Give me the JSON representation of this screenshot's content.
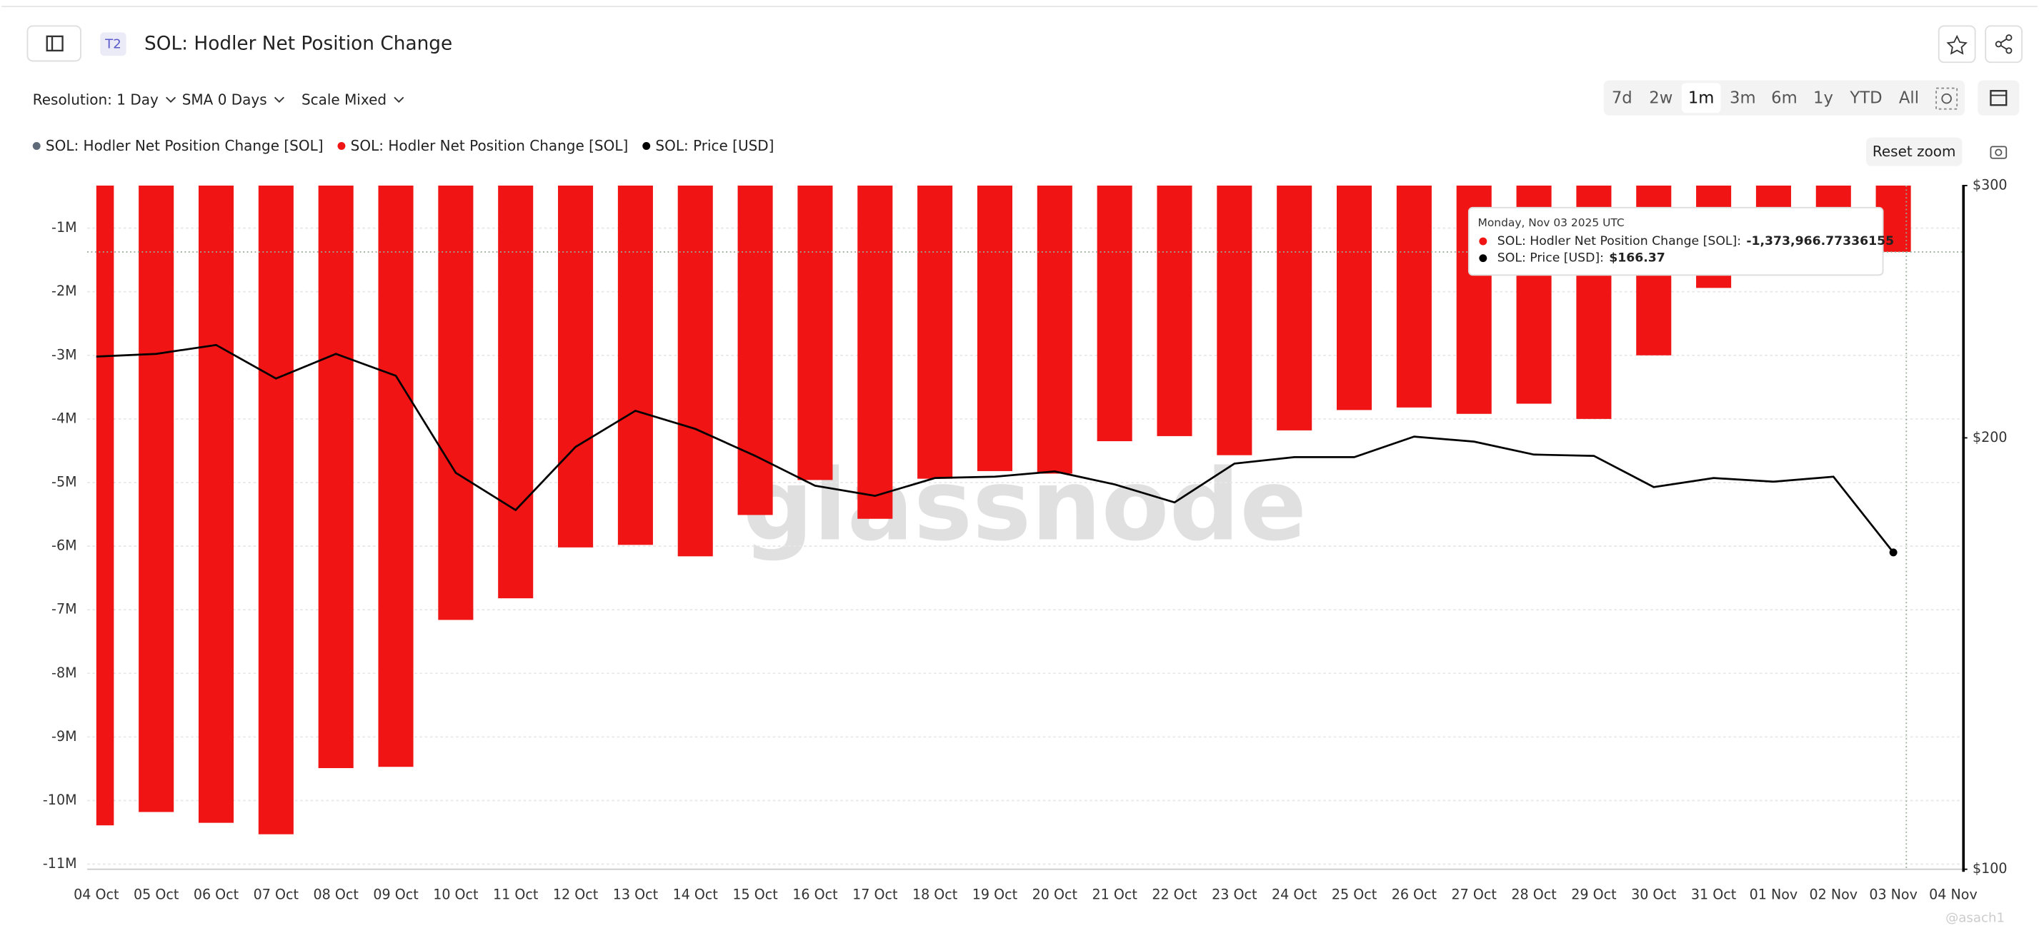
{
  "ui": {
    "badge": "T2",
    "title": "SOL: Hodler Net Position Change",
    "controls": [
      "Resolution: 1 Day",
      "SMA 0 Days",
      "Scale Mixed"
    ],
    "ranges": [
      "7d",
      "2w",
      "1m",
      "3m",
      "6m",
      "1y",
      "YTD",
      "All"
    ],
    "active_range": 2,
    "reset_zoom": "Reset zoom",
    "watermark": "glassnode",
    "credit": "@asach1"
  },
  "chart_data": {
    "type": "combo",
    "categories": [
      "04 Oct",
      "05 Oct",
      "06 Oct",
      "07 Oct",
      "08 Oct",
      "09 Oct",
      "10 Oct",
      "11 Oct",
      "12 Oct",
      "13 Oct",
      "14 Oct",
      "15 Oct",
      "16 Oct",
      "17 Oct",
      "18 Oct",
      "19 Oct",
      "20 Oct",
      "21 Oct",
      "22 Oct",
      "23 Oct",
      "24 Oct",
      "25 Oct",
      "26 Oct",
      "27 Oct",
      "28 Oct",
      "29 Oct",
      "30 Oct",
      "31 Oct",
      "01 Nov",
      "02 Nov",
      "03 Nov",
      "04 Nov"
    ],
    "series": [
      {
        "name": "SOL: Hodler Net Position Change [SOL]",
        "type": "bar",
        "color": "#5f6b78",
        "values": [
          null,
          null,
          null,
          null,
          null,
          null,
          null,
          null,
          null,
          null,
          null,
          null,
          null,
          null,
          null,
          null,
          null,
          null,
          null,
          null,
          null,
          null,
          null,
          null,
          null,
          null,
          null,
          null,
          null,
          null,
          null,
          null
        ]
      },
      {
        "name": "SOL: Hodler Net Position Change [SOL]",
        "type": "bar",
        "color": "#f01414",
        "values": [
          -10390000,
          -10180000,
          -10350000,
          -10530000,
          -9490000,
          -9470000,
          -7160000,
          -6820000,
          -6020000,
          -5980000,
          -6160000,
          -5510000,
          -4960000,
          -5570000,
          -4940000,
          -4820000,
          -4860000,
          -4350000,
          -4270000,
          -4570000,
          -4180000,
          -3860000,
          -3820000,
          -3920000,
          -3760000,
          -4000000,
          -3000000,
          -1940000,
          -670000,
          -670000,
          -1373966.77336155,
          null
        ],
        "value_labels": [
          null,
          null,
          null,
          null,
          null,
          null,
          null,
          null,
          null,
          null,
          null,
          null,
          null,
          null,
          null,
          null,
          null,
          null,
          null,
          null,
          null,
          null,
          null,
          null,
          null,
          null,
          null,
          null,
          null,
          null,
          "-1,373,966.77336155",
          null
        ]
      },
      {
        "name": "SOL: Price [USD]",
        "type": "line",
        "axis": "y2",
        "color": "#000000",
        "values": [
          227.9,
          228.9,
          232.2,
          220.0,
          228.9,
          221.0,
          189.1,
          178.1,
          197.1,
          208.9,
          202.9,
          194.3,
          185.2,
          182.2,
          187.5,
          187.9,
          189.5,
          185.6,
          180.3,
          191.9,
          193.9,
          193.9,
          200.4,
          198.8,
          194.7,
          194.3,
          184.8,
          187.5,
          186.4,
          187.9,
          166.37,
          null
        ],
        "value_labels": [
          null,
          null,
          null,
          null,
          null,
          null,
          null,
          null,
          null,
          null,
          null,
          null,
          null,
          null,
          null,
          null,
          null,
          null,
          null,
          null,
          null,
          null,
          null,
          null,
          null,
          null,
          null,
          null,
          null,
          null,
          "$166.37",
          null
        ]
      }
    ],
    "ylim": [
      -11080000,
      -330000
    ],
    "yticks": [
      {
        "value": -1000000,
        "label": "-1M"
      },
      {
        "value": -2000000,
        "label": "-2M"
      },
      {
        "value": -3000000,
        "label": "-3M"
      },
      {
        "value": -4000000,
        "label": "-4M"
      },
      {
        "value": -5000000,
        "label": "-5M"
      },
      {
        "value": -6000000,
        "label": "-6M"
      },
      {
        "value": -7000000,
        "label": "-7M"
      },
      {
        "value": -8000000,
        "label": "-8M"
      },
      {
        "value": -9000000,
        "label": "-9M"
      },
      {
        "value": -10000000,
        "label": "-10M"
      },
      {
        "value": -11000000,
        "label": "-11M"
      }
    ],
    "y2lim": [
      100,
      300
    ],
    "y2log": true,
    "y2ticks": [
      {
        "value": 100,
        "label": "$100"
      },
      {
        "value": 200,
        "label": "$200"
      },
      {
        "value": 300,
        "label": "$300"
      }
    ],
    "grid": true,
    "tooltip": {
      "title": "Monday, Nov 03 2025 UTC",
      "index": 30,
      "separator": ":"
    }
  }
}
